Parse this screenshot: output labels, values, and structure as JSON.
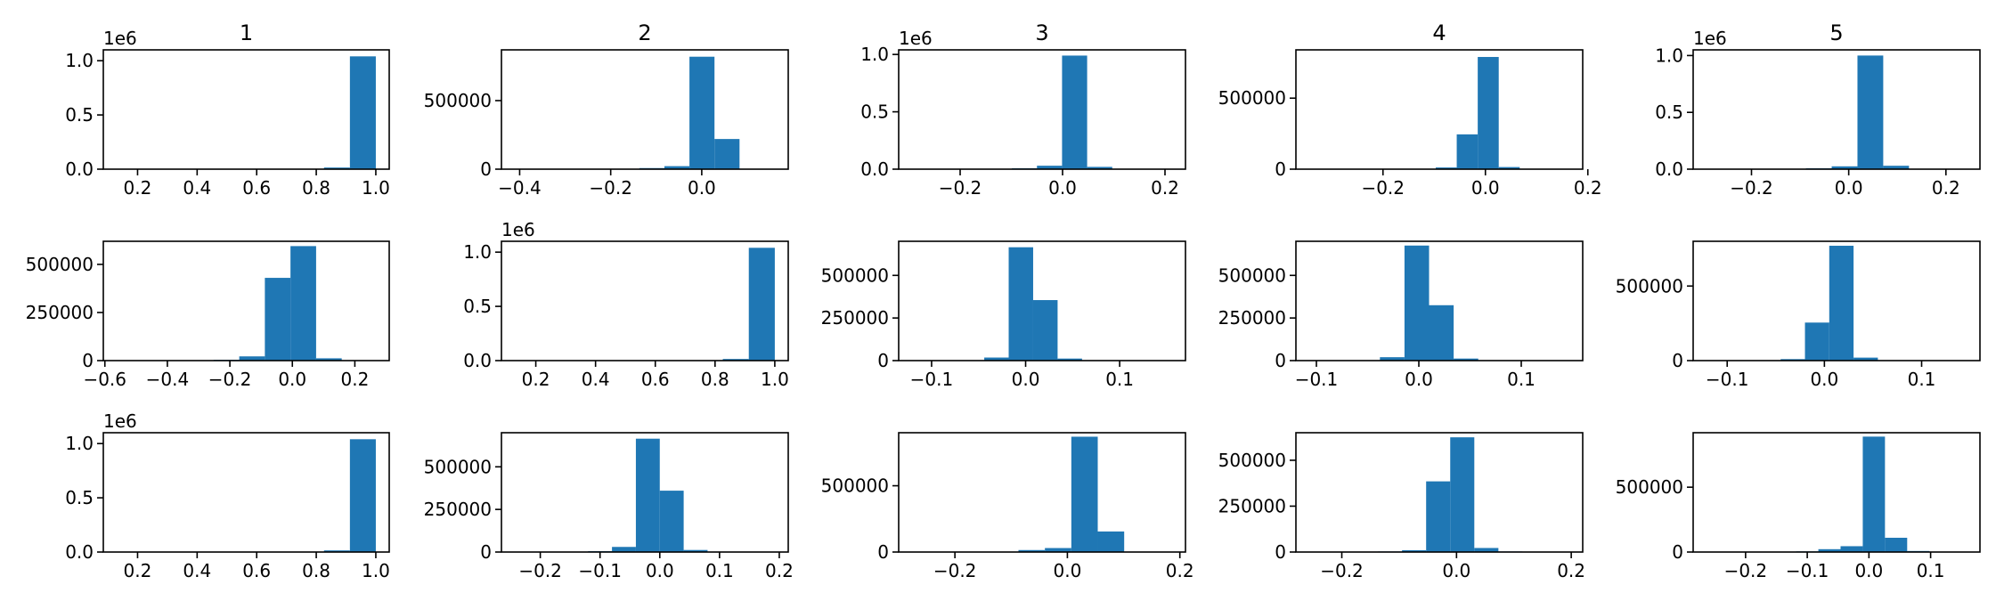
{
  "figure": {
    "grid": {
      "rows": 3,
      "cols": 5
    },
    "bar_color": "#1f77b4",
    "column_titles": [
      "1",
      "2",
      "3",
      "4",
      "5"
    ]
  },
  "chart_data": [
    {
      "type": "bar",
      "row": 0,
      "col": 0,
      "title": "1",
      "ylim": [
        0,
        1100000
      ],
      "yticks": [
        0,
        500000,
        1000000
      ],
      "ytick_labels": [
        "0.0",
        "0.5",
        "1.0"
      ],
      "offset_label": "1e6",
      "xlim": [
        0.085,
        1.045
      ],
      "xticks": [
        0.2,
        0.4,
        0.6,
        0.8,
        1.0
      ],
      "xtick_labels": [
        "0.2",
        "0.4",
        "0.6",
        "0.8",
        "1.0"
      ],
      "bin_edges": [
        0.13,
        0.217,
        0.304,
        0.391,
        0.478,
        0.565,
        0.652,
        0.739,
        0.826,
        0.913,
        1.0
      ],
      "values": [
        0,
        0,
        0,
        0,
        0,
        0,
        0,
        2000,
        15000,
        1040000
      ]
    },
    {
      "type": "bar",
      "row": 0,
      "col": 1,
      "title": "2",
      "ylim": [
        0,
        870000
      ],
      "yticks": [
        0,
        500000
      ],
      "ytick_labels": [
        "0",
        "500000"
      ],
      "offset_label": "",
      "xlim": [
        -0.44,
        0.19
      ],
      "xticks": [
        -0.4,
        -0.2,
        0.0
      ],
      "xtick_labels": [
        "−0.4",
        "−0.2",
        "0.0"
      ],
      "bin_edges": [
        -0.412,
        -0.357,
        -0.302,
        -0.247,
        -0.192,
        -0.137,
        -0.082,
        -0.027,
        0.028,
        0.083,
        0.138
      ],
      "values": [
        0,
        0,
        0,
        1000,
        3000,
        8000,
        22000,
        820000,
        220000,
        3000
      ]
    },
    {
      "type": "bar",
      "row": 0,
      "col": 2,
      "title": "3",
      "ylim": [
        0,
        1040000
      ],
      "yticks": [
        0,
        500000,
        1000000
      ],
      "ytick_labels": [
        "0.0",
        "0.5",
        "1.0"
      ],
      "offset_label": "1e6",
      "xlim": [
        -0.32,
        0.24
      ],
      "xticks": [
        -0.2,
        0.0,
        0.2
      ],
      "xtick_labels": [
        "−0.2",
        "0.0",
        "0.2"
      ],
      "bin_edges": [
        -0.295,
        -0.246,
        -0.197,
        -0.148,
        -0.099,
        -0.05,
        -0.001,
        0.048,
        0.097,
        0.146,
        0.195
      ],
      "values": [
        0,
        0,
        0,
        0,
        8000,
        30000,
        990000,
        20000,
        1000,
        0
      ]
    },
    {
      "type": "bar",
      "row": 0,
      "col": 3,
      "title": "4",
      "ylim": [
        0,
        840000
      ],
      "yticks": [
        0,
        500000
      ],
      "ytick_labels": [
        "0",
        "500000"
      ],
      "offset_label": "",
      "xlim": [
        -0.37,
        0.19
      ],
      "xticks": [
        -0.2,
        0.0,
        0.2
      ],
      "xtick_labels": [
        "−0.2",
        "0.0",
        "0.2"
      ],
      "bin_edges": [
        -0.343,
        -0.302,
        -0.261,
        -0.22,
        -0.179,
        -0.138,
        -0.097,
        -0.056,
        -0.015,
        0.026,
        0.067
      ],
      "values": [
        0,
        0,
        0,
        0,
        0,
        2000,
        12000,
        245000,
        790000,
        15000
      ]
    },
    {
      "type": "bar",
      "row": 0,
      "col": 4,
      "title": "5",
      "ylim": [
        0,
        1050000
      ],
      "yticks": [
        0,
        500000,
        1000000
      ],
      "ytick_labels": [
        "0.0",
        "0.5",
        "1.0"
      ],
      "offset_label": "1e6",
      "xlim": [
        -0.32,
        0.27
      ],
      "xticks": [
        -0.2,
        0.0,
        0.2
      ],
      "xtick_labels": [
        "−0.2",
        "0.0",
        "0.2"
      ],
      "bin_edges": [
        -0.3,
        -0.247,
        -0.194,
        -0.141,
        -0.088,
        -0.035,
        0.018,
        0.071,
        0.124,
        0.177,
        0.23
      ],
      "values": [
        0,
        0,
        0,
        1000,
        8000,
        25000,
        1000000,
        30000,
        3000,
        0
      ]
    },
    {
      "type": "bar",
      "row": 1,
      "col": 0,
      "title": "",
      "ylim": [
        0,
        620000
      ],
      "yticks": [
        0,
        250000,
        500000
      ],
      "ytick_labels": [
        "0",
        "250000",
        "500000"
      ],
      "offset_label": "",
      "xlim": [
        -0.605,
        0.31
      ],
      "xticks": [
        -0.6,
        -0.4,
        -0.2,
        0.0,
        0.2
      ],
      "xtick_labels": [
        "−0.6",
        "−0.4",
        "−0.2",
        "0.0",
        "0.2"
      ],
      "bin_edges": [
        -0.58,
        -0.498,
        -0.416,
        -0.334,
        -0.252,
        -0.17,
        -0.088,
        -0.006,
        0.076,
        0.158,
        0.24
      ],
      "values": [
        0,
        0,
        0,
        1000,
        4000,
        22000,
        430000,
        595000,
        12000,
        1000
      ]
    },
    {
      "type": "bar",
      "row": 1,
      "col": 1,
      "title": "",
      "ylim": [
        0,
        1100000
      ],
      "yticks": [
        0,
        500000,
        1000000
      ],
      "ytick_labels": [
        "0.0",
        "0.5",
        "1.0"
      ],
      "offset_label": "1e6",
      "xlim": [
        0.085,
        1.045
      ],
      "xticks": [
        0.2,
        0.4,
        0.6,
        0.8,
        1.0
      ],
      "xtick_labels": [
        "0.2",
        "0.4",
        "0.6",
        "0.8",
        "1.0"
      ],
      "bin_edges": [
        0.13,
        0.217,
        0.304,
        0.391,
        0.478,
        0.565,
        0.652,
        0.739,
        0.826,
        0.913,
        1.0
      ],
      "values": [
        0,
        0,
        0,
        0,
        0,
        0,
        0,
        2000,
        15000,
        1040000
      ]
    },
    {
      "type": "bar",
      "row": 1,
      "col": 2,
      "title": "",
      "ylim": [
        0,
        700000
      ],
      "yticks": [
        0,
        250000,
        500000
      ],
      "ytick_labels": [
        "0",
        "250000",
        "500000"
      ],
      "offset_label": "",
      "xlim": [
        -0.135,
        0.17
      ],
      "xticks": [
        -0.1,
        0.0,
        0.1
      ],
      "xtick_labels": [
        "−0.1",
        "0.0",
        "0.1"
      ],
      "bin_edges": [
        -0.122,
        -0.096,
        -0.07,
        -0.044,
        -0.018,
        0.008,
        0.034,
        0.06,
        0.086,
        0.112,
        0.138
      ],
      "values": [
        0,
        1000,
        2000,
        18000,
        665000,
        355000,
        12000,
        2000,
        0,
        0
      ]
    },
    {
      "type": "bar",
      "row": 1,
      "col": 3,
      "title": "",
      "ylim": [
        0,
        700000
      ],
      "yticks": [
        0,
        250000,
        500000
      ],
      "ytick_labels": [
        "0",
        "250000",
        "500000"
      ],
      "offset_label": "",
      "xlim": [
        -0.12,
        0.16
      ],
      "xticks": [
        -0.1,
        0.0,
        0.1
      ],
      "xtick_labels": [
        "−0.1",
        "0.0",
        "0.1"
      ],
      "bin_edges": [
        -0.11,
        -0.086,
        -0.062,
        -0.038,
        -0.014,
        0.01,
        0.034,
        0.058,
        0.082,
        0.106,
        0.13
      ],
      "values": [
        0,
        1000,
        2000,
        20000,
        675000,
        325000,
        12000,
        1000,
        0,
        0
      ]
    },
    {
      "type": "bar",
      "row": 1,
      "col": 4,
      "title": "",
      "ylim": [
        0,
        800000
      ],
      "yticks": [
        0,
        500000
      ],
      "ytick_labels": [
        "0",
        "500000"
      ],
      "offset_label": "",
      "xlim": [
        -0.135,
        0.16
      ],
      "xticks": [
        -0.1,
        0.0,
        0.1
      ],
      "xtick_labels": [
        "−0.1",
        "0.0",
        "0.1"
      ],
      "bin_edges": [
        -0.12,
        -0.095,
        -0.07,
        -0.045,
        -0.02,
        0.005,
        0.03,
        0.055,
        0.08,
        0.105,
        0.13
      ],
      "values": [
        0,
        1000,
        3000,
        10000,
        255000,
        770000,
        20000,
        2000,
        0,
        0
      ]
    },
    {
      "type": "bar",
      "row": 2,
      "col": 0,
      "title": "",
      "ylim": [
        0,
        1100000
      ],
      "yticks": [
        0,
        500000,
        1000000
      ],
      "ytick_labels": [
        "0.0",
        "0.5",
        "1.0"
      ],
      "offset_label": "1e6",
      "xlim": [
        0.085,
        1.045
      ],
      "xticks": [
        0.2,
        0.4,
        0.6,
        0.8,
        1.0
      ],
      "xtick_labels": [
        "0.2",
        "0.4",
        "0.6",
        "0.8",
        "1.0"
      ],
      "bin_edges": [
        0.13,
        0.217,
        0.304,
        0.391,
        0.478,
        0.565,
        0.652,
        0.739,
        0.826,
        0.913,
        1.0
      ],
      "values": [
        0,
        0,
        0,
        0,
        0,
        0,
        0,
        2000,
        15000,
        1040000
      ]
    },
    {
      "type": "bar",
      "row": 2,
      "col": 1,
      "title": "",
      "ylim": [
        0,
        700000
      ],
      "yticks": [
        0,
        250000,
        500000
      ],
      "ytick_labels": [
        "0",
        "250000",
        "500000"
      ],
      "offset_label": "",
      "xlim": [
        -0.265,
        0.215
      ],
      "xticks": [
        -0.2,
        -0.1,
        0.0,
        0.1,
        0.2
      ],
      "xtick_labels": [
        "−0.2",
        "−0.1",
        "0.0",
        "0.1",
        "0.2"
      ],
      "bin_edges": [
        -0.24,
        -0.2,
        -0.16,
        -0.12,
        -0.08,
        -0.04,
        0.0,
        0.04,
        0.08,
        0.12,
        0.16
      ],
      "values": [
        0,
        0,
        1000,
        5000,
        30000,
        665000,
        360000,
        12000,
        2000,
        0
      ]
    },
    {
      "type": "bar",
      "row": 2,
      "col": 2,
      "title": "",
      "ylim": [
        0,
        900000
      ],
      "yticks": [
        0,
        500000
      ],
      "ytick_labels": [
        "0",
        "500000"
      ],
      "offset_label": "",
      "xlim": [
        -0.3,
        0.21
      ],
      "xticks": [
        -0.2,
        0.0,
        0.2
      ],
      "xtick_labels": [
        "−0.2",
        "0.0",
        "0.2"
      ],
      "bin_edges": [
        -0.275,
        -0.228,
        -0.181,
        -0.134,
        -0.087,
        -0.04,
        0.007,
        0.054,
        0.101,
        0.148,
        0.195
      ],
      "values": [
        0,
        0,
        0,
        2000,
        15000,
        30000,
        870000,
        155000,
        3000,
        0
      ]
    },
    {
      "type": "bar",
      "row": 2,
      "col": 3,
      "title": "",
      "ylim": [
        0,
        650000
      ],
      "yticks": [
        0,
        250000,
        500000
      ],
      "ytick_labels": [
        "0",
        "250000",
        "500000"
      ],
      "offset_label": "",
      "xlim": [
        -0.28,
        0.22
      ],
      "xticks": [
        -0.2,
        0.0,
        0.2
      ],
      "xtick_labels": [
        "−0.2",
        "0.0",
        "0.2"
      ],
      "bin_edges": [
        -0.263,
        -0.221,
        -0.179,
        -0.137,
        -0.095,
        -0.053,
        -0.011,
        0.031,
        0.073,
        0.115,
        0.157
      ],
      "values": [
        0,
        0,
        1000,
        3000,
        10000,
        385000,
        625000,
        22000,
        3000,
        0
      ]
    },
    {
      "type": "bar",
      "row": 2,
      "col": 4,
      "title": "",
      "ylim": [
        0,
        920000
      ],
      "yticks": [
        0,
        500000
      ],
      "ytick_labels": [
        "0",
        "500000"
      ],
      "offset_label": "",
      "xlim": [
        -0.285,
        0.18
      ],
      "xticks": [
        -0.2,
        -0.1,
        0.0,
        0.1
      ],
      "xtick_labels": [
        "−0.2",
        "−0.1",
        "0.0",
        "0.1"
      ],
      "bin_edges": [
        -0.262,
        -0.226,
        -0.19,
        -0.154,
        -0.118,
        -0.082,
        -0.046,
        -0.01,
        0.026,
        0.062,
        0.098
      ],
      "values": [
        0,
        0,
        0,
        1000,
        5000,
        22000,
        45000,
        890000,
        110000,
        8000
      ]
    }
  ]
}
